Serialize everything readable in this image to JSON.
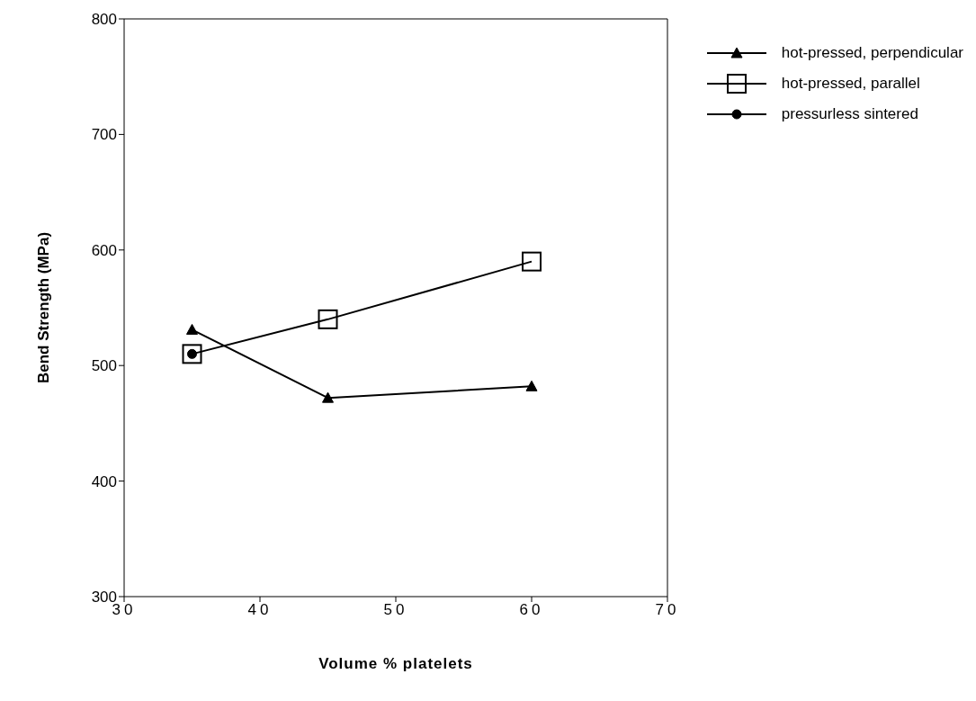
{
  "chart_data": {
    "type": "line",
    "xlabel": "Volume  %  platelets",
    "ylabel": "Bend  Strength  (MPa)",
    "x": [
      35,
      45,
      60
    ],
    "series": [
      {
        "name": "hot-pressed, perpendicular",
        "color": "#000000",
        "marker": "triangle",
        "values": [
          531,
          472,
          482
        ]
      },
      {
        "name": "hot-pressed, parallel",
        "color": "#000000",
        "marker": "square",
        "values": [
          510,
          540,
          590
        ]
      },
      {
        "name": "pressurless sintered",
        "color": "#000000",
        "marker": "circle",
        "values": [
          510,
          null,
          null
        ]
      }
    ],
    "xlim": [
      30,
      70
    ],
    "xticks": [
      30,
      40,
      50,
      60,
      70
    ],
    "ylim": [
      300,
      800
    ],
    "yticks": [
      300,
      400,
      500,
      600,
      700,
      800
    ],
    "grid": false,
    "legend": "top right",
    "line_style": "solid"
  }
}
